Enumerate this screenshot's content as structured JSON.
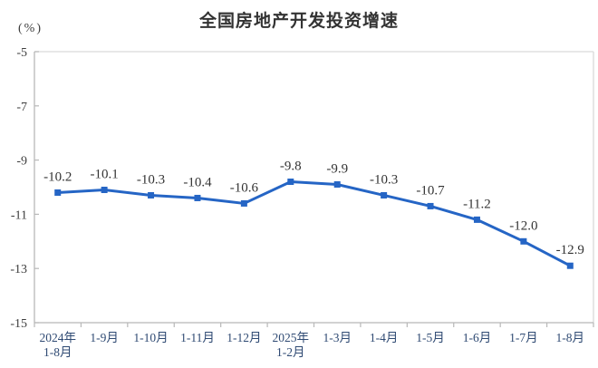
{
  "header": {
    "title": "全国房地产开发投资增速",
    "unit_label": "(%)"
  },
  "chart_data": {
    "type": "line",
    "title": "全国房地产开发投资增速",
    "ylabel": "(%)",
    "xlabel": "",
    "categories": [
      "2024年\n1-8月",
      "1-9月",
      "1-10月",
      "1-11月",
      "1-12月",
      "2025年\n1-2月",
      "1-3月",
      "1-4月",
      "1-5月",
      "1-6月",
      "1-7月",
      "1-8月"
    ],
    "values": [
      -10.2,
      -10.1,
      -10.3,
      -10.4,
      -10.6,
      -9.8,
      -9.9,
      -10.3,
      -10.7,
      -11.2,
      -12.0,
      -12.9
    ],
    "data_labels": [
      "-10.2",
      "-10.1",
      "-10.3",
      "-10.4",
      "-10.6",
      "-9.8",
      "-9.9",
      "-10.3",
      "-10.7",
      "-11.2",
      "-12.0",
      "-12.9"
    ],
    "ylim": [
      -15,
      -5
    ],
    "yticks": [
      -5,
      -7,
      -9,
      -11,
      -13,
      -15
    ],
    "ytick_labels": [
      "-5",
      "-7",
      "-9",
      "-11",
      "-13",
      "-15"
    ],
    "grid": false,
    "legend": "none",
    "marker": "square",
    "colors": {
      "line": "#2565c5",
      "marker": "#2565c5",
      "axis": "#b8b8b8",
      "border": "#d9d9d9",
      "title": "#333333",
      "data_label": "#333333",
      "ytick_text": "#3d3d3d",
      "xtick_text": "#2f4a73"
    }
  }
}
